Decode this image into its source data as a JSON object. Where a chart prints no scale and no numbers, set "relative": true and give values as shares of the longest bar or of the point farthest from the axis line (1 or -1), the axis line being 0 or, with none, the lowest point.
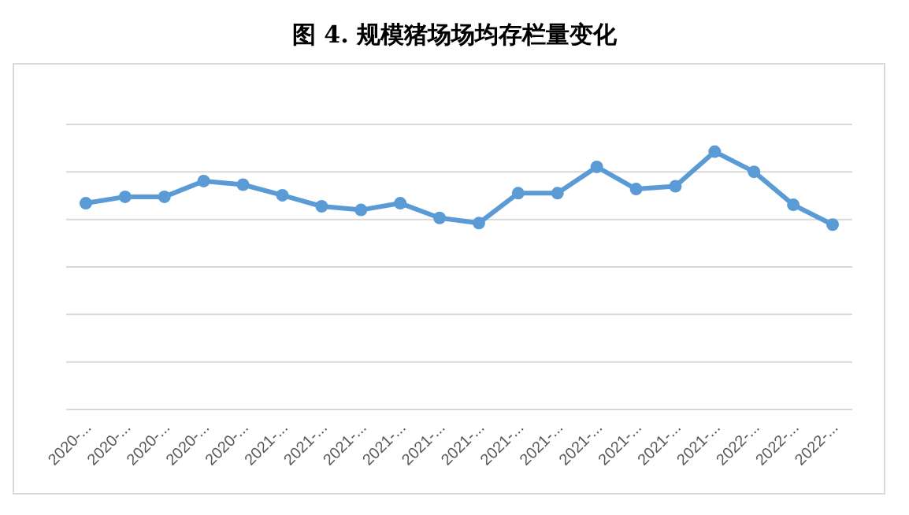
{
  "chart_data": {
    "type": "line",
    "title": "图 4. 规模猪场场均存栏量变化",
    "relative": true,
    "grid": "y",
    "marker": "circle",
    "line_style": "solid",
    "categories": [
      "2020-...",
      "2020-...",
      "2020-...",
      "2020-...",
      "2020-...",
      "2021-...",
      "2021-...",
      "2021-...",
      "2021-...",
      "2021-...",
      "2021-...",
      "2021-...",
      "2021-...",
      "2021-...",
      "2021-...",
      "2021-...",
      "2021-...",
      "2022-...",
      "2022-...",
      "2022-..."
    ],
    "series": [
      {
        "color": "#5b9bd5",
        "values": [
          0.8,
          0.825,
          0.825,
          0.886,
          0.872,
          0.831,
          0.788,
          0.774,
          0.8,
          0.743,
          0.723,
          0.839,
          0.839,
          0.941,
          0.855,
          0.866,
          1,
          0.922,
          0.794,
          0.717
        ]
      }
    ]
  }
}
